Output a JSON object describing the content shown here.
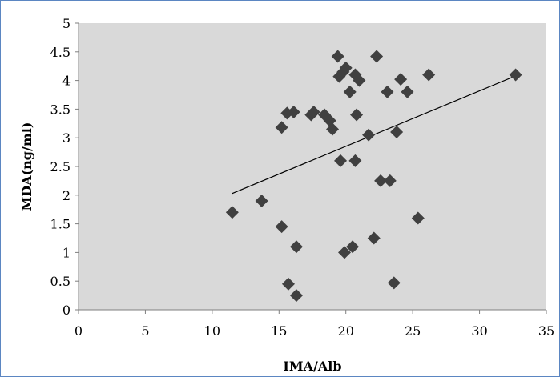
{
  "chart_data": {
    "type": "scatter",
    "title": "",
    "xlabel": "IMA/Alb",
    "ylabel": "MDA(ng/ml)",
    "xlim": [
      0,
      35
    ],
    "ylim": [
      0,
      5
    ],
    "x_ticks": [
      "0",
      "5",
      "10",
      "15",
      "20",
      "25",
      "30",
      "35"
    ],
    "y_ticks": [
      "0",
      "0.5",
      "1",
      "1.5",
      "2",
      "2.5",
      "3",
      "3.5",
      "4",
      "4.5",
      "5"
    ],
    "grid": false,
    "legend": "none",
    "plot_background": "#d9d9d9",
    "marker": "diamond",
    "marker_color": "#404040",
    "trendline": {
      "type": "linear",
      "x": [
        11.5,
        32.7
      ],
      "y": [
        2.03,
        4.08
      ],
      "color": "#000000"
    },
    "points": [
      {
        "x": 11.5,
        "y": 1.7
      },
      {
        "x": 13.7,
        "y": 1.9
      },
      {
        "x": 15.2,
        "y": 1.45
      },
      {
        "x": 15.2,
        "y": 3.18
      },
      {
        "x": 15.6,
        "y": 3.43
      },
      {
        "x": 15.7,
        "y": 0.45
      },
      {
        "x": 16.1,
        "y": 3.45
      },
      {
        "x": 16.3,
        "y": 1.1
      },
      {
        "x": 16.3,
        "y": 0.25
      },
      {
        "x": 17.4,
        "y": 3.4
      },
      {
        "x": 17.6,
        "y": 3.45
      },
      {
        "x": 18.4,
        "y": 3.4
      },
      {
        "x": 18.8,
        "y": 3.3
      },
      {
        "x": 19.0,
        "y": 3.15
      },
      {
        "x": 19.4,
        "y": 4.42
      },
      {
        "x": 19.5,
        "y": 4.07
      },
      {
        "x": 19.6,
        "y": 2.6
      },
      {
        "x": 19.8,
        "y": 4.15
      },
      {
        "x": 19.9,
        "y": 1.0
      },
      {
        "x": 20.0,
        "y": 4.22
      },
      {
        "x": 20.3,
        "y": 3.8
      },
      {
        "x": 20.5,
        "y": 1.1
      },
      {
        "x": 20.7,
        "y": 4.1
      },
      {
        "x": 20.7,
        "y": 2.6
      },
      {
        "x": 20.8,
        "y": 3.4
      },
      {
        "x": 21.0,
        "y": 4.0
      },
      {
        "x": 21.7,
        "y": 3.05
      },
      {
        "x": 22.1,
        "y": 1.25
      },
      {
        "x": 22.3,
        "y": 4.42
      },
      {
        "x": 22.6,
        "y": 2.25
      },
      {
        "x": 23.1,
        "y": 3.8
      },
      {
        "x": 23.3,
        "y": 2.25
      },
      {
        "x": 23.6,
        "y": 0.47
      },
      {
        "x": 23.8,
        "y": 3.1
      },
      {
        "x": 24.1,
        "y": 4.02
      },
      {
        "x": 24.6,
        "y": 3.8
      },
      {
        "x": 25.4,
        "y": 1.6
      },
      {
        "x": 26.2,
        "y": 4.1
      },
      {
        "x": 32.7,
        "y": 4.1
      }
    ]
  }
}
